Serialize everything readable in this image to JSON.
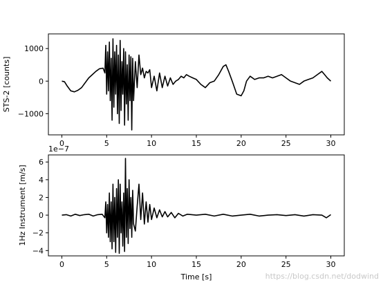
{
  "chart_data": [
    {
      "type": "line",
      "ylabel": "STS-2 [counts]",
      "xlabel": "",
      "xlim": [
        -1.5,
        31.5
      ],
      "ylim": [
        -1650,
        1450
      ],
      "x_ticks": [
        0,
        5,
        10,
        15,
        20,
        25,
        30
      ],
      "x_tick_labels": [
        "0",
        "5",
        "10",
        "15",
        "20",
        "25",
        "30"
      ],
      "y_ticks": [
        -1000,
        0,
        1000
      ],
      "y_tick_labels": [
        "−1000",
        "0",
        "1000"
      ],
      "line_color": "#000000",
      "grid": false,
      "series": [
        {
          "x": [
            0,
            0.3,
            0.6,
            1.0,
            1.4,
            1.8,
            2.2,
            2.6,
            3.0,
            3.4,
            3.8,
            4.2,
            4.6,
            4.8,
            4.9,
            5.0,
            5.1,
            5.2,
            5.3,
            5.4,
            5.5,
            5.6,
            5.7,
            5.8,
            5.9,
            6.0,
            6.1,
            6.2,
            6.3,
            6.4,
            6.5,
            6.6,
            6.7,
            6.8,
            6.9,
            7.0,
            7.1,
            7.2,
            7.3,
            7.4,
            7.5,
            7.6,
            7.7,
            7.8,
            7.9,
            8.0,
            8.2,
            8.4,
            8.6,
            8.8,
            9.0,
            9.2,
            9.4,
            9.6,
            9.8,
            10.0,
            10.3,
            10.6,
            10.9,
            11.2,
            11.5,
            11.8,
            12.1,
            12.4,
            12.7,
            13.0,
            13.3,
            13.6,
            13.9,
            14.2,
            14.6,
            15.0,
            15.5,
            16.0,
            16.5,
            17.0,
            17.5,
            18.0,
            18.3,
            18.6,
            19.0,
            19.5,
            20.0,
            20.3,
            20.6,
            21.0,
            21.5,
            22.0,
            22.5,
            23.0,
            23.5,
            24.0,
            24.5,
            25.0,
            25.5,
            26.0,
            26.5,
            27.0,
            27.5,
            28.0,
            28.5,
            29.0,
            29.3,
            29.6,
            30.0
          ],
          "y": [
            0,
            -20,
            -150,
            -300,
            -330,
            -280,
            -200,
            -50,
            100,
            200,
            300,
            380,
            400,
            250,
            1100,
            -400,
            900,
            -300,
            1200,
            -600,
            700,
            -1200,
            1300,
            -800,
            900,
            -400,
            1100,
            -1000,
            800,
            -1300,
            1250,
            -900,
            600,
            -400,
            1000,
            -1350,
            900,
            -700,
            500,
            -1200,
            800,
            -600,
            750,
            -1500,
            700,
            -600,
            600,
            -200,
            800,
            200,
            400,
            100,
            300,
            250,
            350,
            -200,
            150,
            -300,
            250,
            -200,
            150,
            -150,
            100,
            -100,
            0,
            50,
            150,
            100,
            200,
            150,
            100,
            50,
            -100,
            -200,
            -50,
            0,
            200,
            450,
            500,
            300,
            0,
            -400,
            -450,
            -300,
            0,
            150,
            50,
            100,
            100,
            150,
            100,
            150,
            200,
            100,
            0,
            -50,
            -100,
            0,
            50,
            100,
            200,
            300,
            200,
            100,
            0
          ]
        }
      ]
    },
    {
      "type": "line",
      "ylabel": "1Hz Instrument [m/s]",
      "xlabel": "Time [s]",
      "offset_text": "1e−7",
      "xlim": [
        -1.5,
        31.5
      ],
      "ylim": [
        -4.6,
        6.8
      ],
      "x_ticks": [
        0,
        5,
        10,
        15,
        20,
        25,
        30
      ],
      "x_tick_labels": [
        "0",
        "5",
        "10",
        "15",
        "20",
        "25",
        "30"
      ],
      "y_ticks": [
        -4,
        -2,
        0,
        2,
        4,
        6
      ],
      "y_tick_labels": [
        "−4",
        "−2",
        "0",
        "2",
        "4",
        "6"
      ],
      "line_color": "#000000",
      "grid": false,
      "series": [
        {
          "x": [
            0,
            0.5,
            1.0,
            1.5,
            2.0,
            2.5,
            3.0,
            3.5,
            4.0,
            4.5,
            4.8,
            4.9,
            5.0,
            5.1,
            5.2,
            5.3,
            5.4,
            5.5,
            5.6,
            5.7,
            5.8,
            5.9,
            6.0,
            6.1,
            6.2,
            6.3,
            6.4,
            6.5,
            6.6,
            6.7,
            6.8,
            6.9,
            7.0,
            7.1,
            7.2,
            7.3,
            7.4,
            7.5,
            7.6,
            7.7,
            7.8,
            7.9,
            8.0,
            8.2,
            8.4,
            8.6,
            8.8,
            9.0,
            9.2,
            9.4,
            9.6,
            9.8,
            10.0,
            10.3,
            10.6,
            10.9,
            11.2,
            11.5,
            11.8,
            12.2,
            12.6,
            13.0,
            13.5,
            14.0,
            15.0,
            16.0,
            17.0,
            18.0,
            19.0,
            20.0,
            21.0,
            22.0,
            23.0,
            24.0,
            25.0,
            26.0,
            27.0,
            28.0,
            29.0,
            29.5,
            30.0
          ],
          "y": [
            0,
            0.05,
            -0.1,
            0.1,
            -0.05,
            0.05,
            0.1,
            -0.1,
            0.05,
            0.1,
            -0.3,
            1.5,
            -2.0,
            1.2,
            -2.5,
            2.5,
            -3.0,
            1.5,
            -3.8,
            3.5,
            -3.0,
            2.0,
            -4.2,
            3.0,
            -2.5,
            4.0,
            -4.3,
            3.5,
            -2.0,
            1.5,
            -3.5,
            2.5,
            -4.1,
            6.4,
            -2.5,
            3.0,
            -3.2,
            4.0,
            -1.5,
            2.0,
            -2.5,
            2.8,
            -1.0,
            -1.8,
            1.0,
            3.5,
            -0.5,
            2.5,
            -1.0,
            1.5,
            -0.8,
            1.2,
            -0.5,
            0.8,
            -0.3,
            0.6,
            -0.2,
            0.4,
            -0.2,
            0.3,
            -0.3,
            0.2,
            -0.1,
            0.1,
            0,
            0.1,
            -0.1,
            0.1,
            -0.1,
            0,
            0.1,
            -0.1,
            0,
            0.05,
            -0.05,
            0.05,
            -0.1,
            0.05,
            0,
            -0.3,
            0.05
          ]
        }
      ]
    }
  ],
  "watermark": "https://blog.csdn.net/dodwind"
}
